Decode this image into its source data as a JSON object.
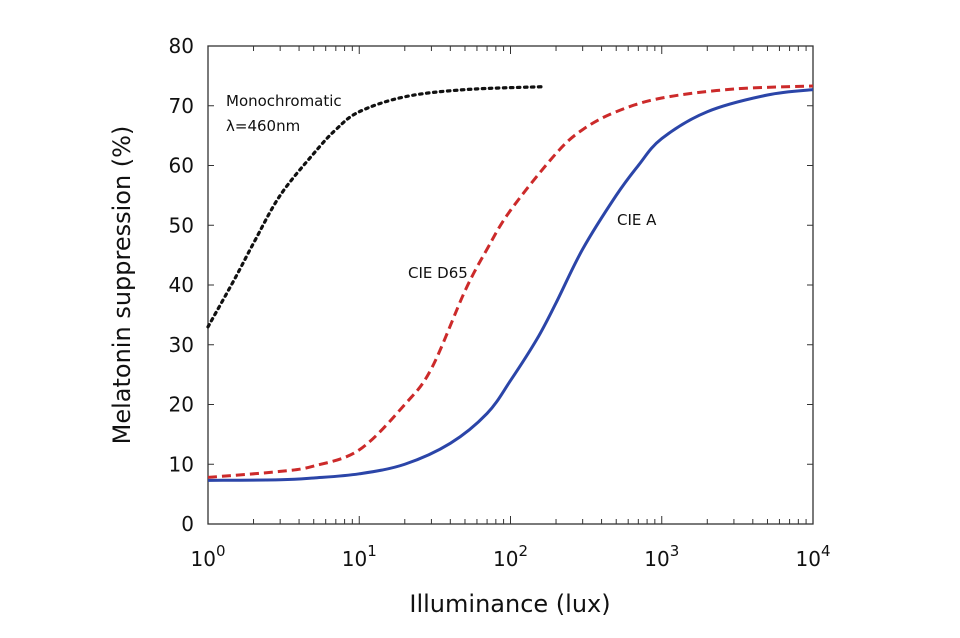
{
  "chart_data": {
    "type": "line",
    "title": "",
    "xlabel": "Illuminance (lux)",
    "ylabel": "Melatonin suppression (%)",
    "x_scale": "log",
    "xlim": [
      1,
      10000
    ],
    "ylim": [
      0,
      80
    ],
    "x_ticks": [
      1,
      10,
      100,
      1000,
      10000
    ],
    "x_tick_labels": [
      {
        "base": "10",
        "exp": "0"
      },
      {
        "base": "10",
        "exp": "1"
      },
      {
        "base": "10",
        "exp": "2"
      },
      {
        "base": "10",
        "exp": "3"
      },
      {
        "base": "10",
        "exp": "4"
      }
    ],
    "y_ticks": [
      "0",
      "10",
      "20",
      "30",
      "40",
      "50",
      "60",
      "70",
      "80"
    ],
    "grid": false,
    "series": [
      {
        "name": "Monochromatic",
        "name_line2": "λ=460nm",
        "color": "#111111",
        "style": "dotted",
        "x": [
          1,
          1.5,
          2,
          3,
          5,
          7,
          10,
          20,
          50,
          170
        ],
        "y": [
          33,
          41,
          47,
          55,
          62,
          66,
          69,
          71.5,
          72.7,
          73.2
        ]
      },
      {
        "name": "CIE D65",
        "color": "#cc2a2a",
        "style": "dashed",
        "x": [
          1,
          3,
          5,
          10,
          20,
          30,
          50,
          70,
          100,
          200,
          300,
          500,
          1000,
          3000,
          10000
        ],
        "y": [
          7.8,
          8.8,
          9.7,
          12.4,
          20,
          26,
          39,
          46,
          52.5,
          62,
          66,
          69,
          71.3,
          72.8,
          73.3
        ]
      },
      {
        "name": "CIE A",
        "color": "#2b45a8",
        "style": "solid",
        "x": [
          1,
          3,
          5,
          10,
          20,
          40,
          70,
          100,
          150,
          200,
          300,
          500,
          700,
          1000,
          2000,
          5000,
          10000
        ],
        "y": [
          7.3,
          7.4,
          7.7,
          8.4,
          10,
          13.5,
          18.5,
          24,
          31,
          37,
          46,
          55,
          60,
          64.5,
          69,
          71.8,
          72.7
        ]
      }
    ]
  }
}
